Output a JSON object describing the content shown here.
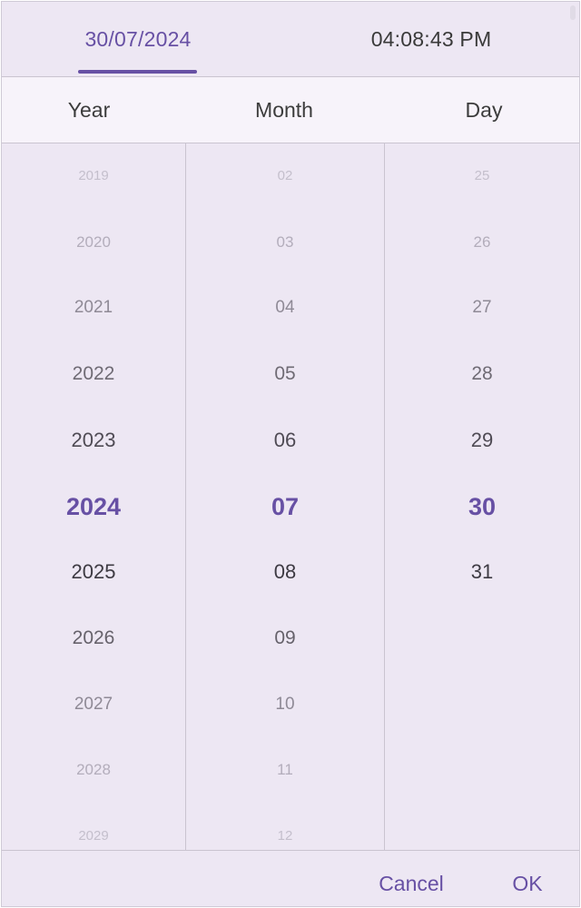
{
  "tabs": {
    "date_label": "30/07/2024",
    "time_label": "04:08:43 PM"
  },
  "headers": {
    "year": "Year",
    "month": "Month",
    "day": "Day"
  },
  "year_items": [
    "2019",
    "2020",
    "2021",
    "2022",
    "2023",
    "2024",
    "2025",
    "2026",
    "2027",
    "2028",
    "2029"
  ],
  "month_items": [
    "02",
    "03",
    "04",
    "05",
    "06",
    "07",
    "08",
    "09",
    "10",
    "11",
    "12"
  ],
  "day_items": [
    "25",
    "26",
    "27",
    "28",
    "29",
    "30",
    "31"
  ],
  "selected": {
    "year": "2024",
    "month": "07",
    "day": "30"
  },
  "buttons": {
    "cancel": "Cancel",
    "ok": "OK"
  },
  "colors": {
    "accent": "#6750a4",
    "surface": "#ede7f3",
    "header_surface": "#f7f3fa",
    "text": "#3c3c3c"
  }
}
